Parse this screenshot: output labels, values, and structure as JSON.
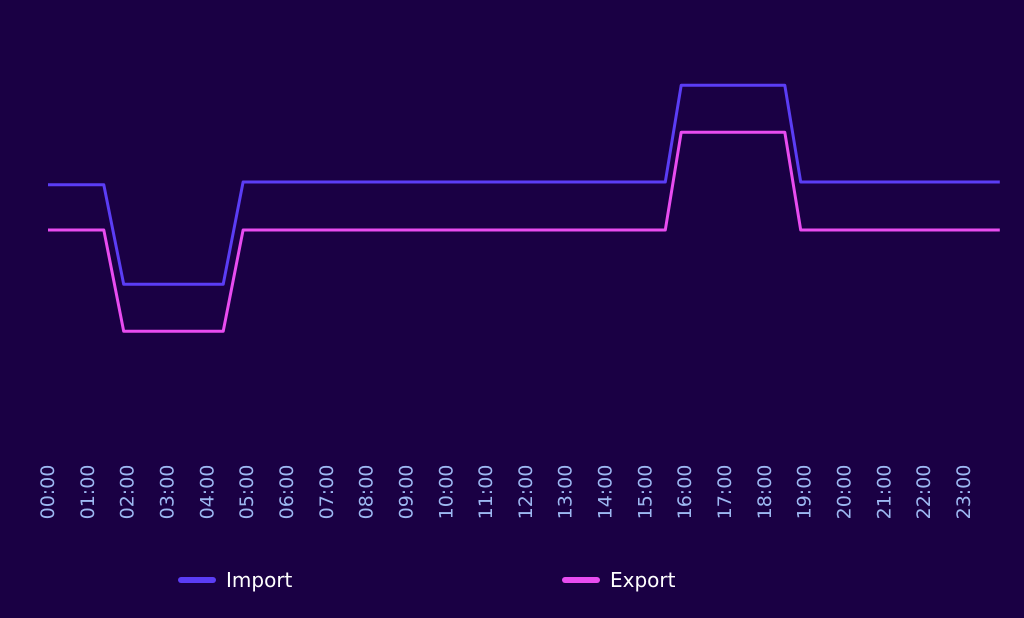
{
  "chart_data": {
    "type": "line",
    "x": [
      "00:00",
      "01:00",
      "02:00",
      "03:00",
      "04:00",
      "05:00",
      "06:00",
      "07:00",
      "08:00",
      "09:00",
      "10:00",
      "11:00",
      "12:00",
      "13:00",
      "14:00",
      "15:00",
      "16:00",
      "17:00",
      "18:00",
      "19:00",
      "20:00",
      "21:00",
      "22:00",
      "23:00"
    ],
    "series": [
      {
        "name": "Import",
        "color": "#5b3df5",
        "points": [
          [
            0,
            56
          ],
          [
            1.4,
            56
          ],
          [
            1.9,
            45
          ],
          [
            4.4,
            45
          ],
          [
            4.9,
            56.3
          ],
          [
            15.5,
            56.3
          ],
          [
            15.9,
            67
          ],
          [
            18.5,
            67
          ],
          [
            18.9,
            56.3
          ],
          [
            23.9,
            56.3
          ]
        ]
      },
      {
        "name": "Export",
        "color": "#e84cf0",
        "points": [
          [
            0,
            51
          ],
          [
            1.4,
            51
          ],
          [
            1.9,
            39.8
          ],
          [
            4.4,
            39.8
          ],
          [
            4.9,
            51
          ],
          [
            15.5,
            51
          ],
          [
            15.9,
            61.8
          ],
          [
            18.5,
            61.8
          ],
          [
            18.9,
            51
          ],
          [
            23.9,
            51
          ]
        ]
      }
    ],
    "ylim": [
      30,
      72
    ],
    "grid": false,
    "legend": "bottom",
    "title": "",
    "xlabel": "",
    "ylabel": "",
    "tick_color": "#9db8f2"
  }
}
